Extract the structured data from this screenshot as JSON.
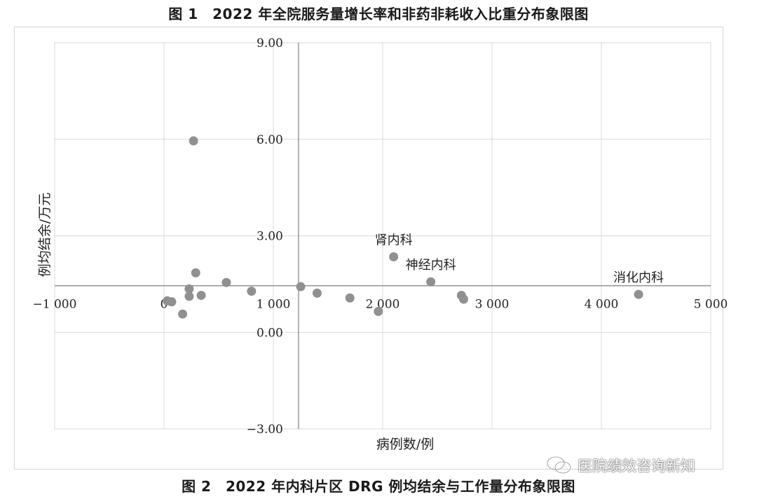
{
  "header": {
    "title": "图 1　2022 年全院服务量增长率和非药非耗收入比重分布象限图"
  },
  "footer": {
    "title": "图 2　2022 年内科片区 DRG 例均结余与工作量分布象限图"
  },
  "watermark": {
    "text": "医院绩效咨询新知",
    "icon": "wechat-icon"
  },
  "colors": {
    "point": "#909090",
    "grid": "#d9d9d9",
    "axis": "#8c8c8c",
    "frame": "#d2d2d2"
  },
  "chart_data": {
    "type": "scatter",
    "title": "图 2　2022 年内科片区 DRG 例均结余与工作量分布象限图",
    "xlabel": "病例数/例",
    "ylabel": "例均结余/万元",
    "xlim": [
      -1000,
      5000
    ],
    "ylim": [
      -3,
      9
    ],
    "x_ticks": [
      -1000,
      0,
      1000,
      2000,
      3000,
      4000,
      5000
    ],
    "x_tick_labels": [
      "−1 000",
      "0",
      "1 000",
      "2 000",
      "3 000",
      "4 000",
      "5 000"
    ],
    "y_ticks": [
      -3,
      0,
      3,
      6,
      9
    ],
    "y_tick_labels": [
      "−3.00",
      "0.00",
      "3.00",
      "6.00",
      "9.00"
    ],
    "quadrant_lines": {
      "x": 1230,
      "y": 1.45
    },
    "grid": true,
    "legend": "none",
    "points": [
      {
        "x": 270,
        "y": 5.95,
        "label": ""
      },
      {
        "x": 290,
        "y": 1.85,
        "label": ""
      },
      {
        "x": 570,
        "y": 1.55,
        "label": ""
      },
      {
        "x": 230,
        "y": 1.35,
        "label": ""
      },
      {
        "x": 800,
        "y": 1.28,
        "label": ""
      },
      {
        "x": 340,
        "y": 1.15,
        "label": ""
      },
      {
        "x": 230,
        "y": 1.12,
        "label": ""
      },
      {
        "x": 30,
        "y": 0.98,
        "label": ""
      },
      {
        "x": 70,
        "y": 0.95,
        "label": ""
      },
      {
        "x": 170,
        "y": 0.57,
        "label": ""
      },
      {
        "x": 1250,
        "y": 1.42,
        "label": ""
      },
      {
        "x": 1400,
        "y": 1.22,
        "label": ""
      },
      {
        "x": 1700,
        "y": 1.07,
        "label": ""
      },
      {
        "x": 1960,
        "y": 0.65,
        "label": ""
      },
      {
        "x": 2100,
        "y": 2.35,
        "label": "肾内科"
      },
      {
        "x": 2440,
        "y": 1.57,
        "label": "神经内科"
      },
      {
        "x": 2720,
        "y": 1.15,
        "label": ""
      },
      {
        "x": 2740,
        "y": 1.03,
        "label": ""
      },
      {
        "x": 4340,
        "y": 1.18,
        "label": "消化内科"
      }
    ]
  }
}
